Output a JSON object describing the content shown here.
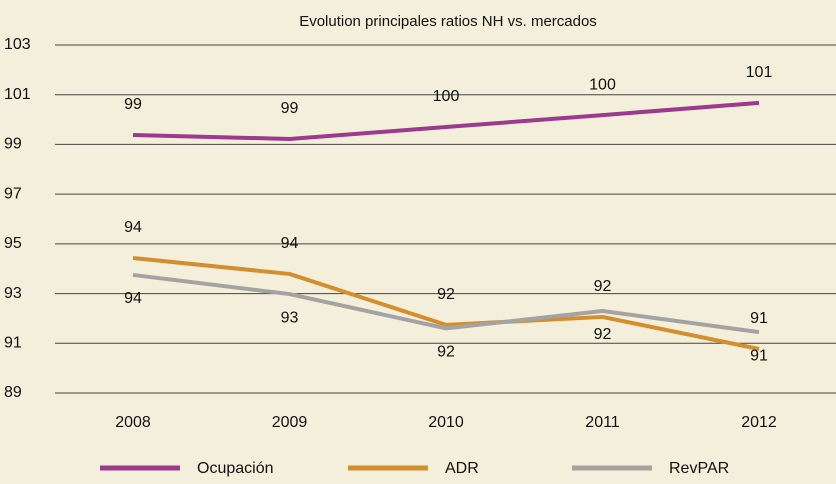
{
  "chart_data": {
    "type": "line",
    "title": "Evolution principales ratios NH vs. mercados",
    "categories": [
      "2008",
      "2009",
      "2010",
      "2011",
      "2012"
    ],
    "series": [
      {
        "name": "Ocupación",
        "color": "#9b3a8e",
        "values": [
          99.38,
          99.22,
          99.7,
          100.18,
          100.67
        ],
        "value_labels": [
          "99",
          "99",
          "100",
          "100",
          "101"
        ]
      },
      {
        "name": "ADR",
        "color": "#d38f2e",
        "values": [
          94.43,
          93.79,
          91.74,
          92.06,
          90.77
        ],
        "value_labels": [
          "94",
          "94",
          "92",
          "92",
          "91"
        ]
      },
      {
        "name": "RevPAR",
        "color": "#a3a3a3",
        "values": [
          93.75,
          92.98,
          91.6,
          92.3,
          91.45
        ],
        "value_labels": [
          "94",
          "93",
          "92",
          "92",
          "91"
        ]
      }
    ],
    "ylim": [
      89,
      103
    ],
    "yticks": [
      89,
      91,
      93,
      95,
      97,
      99,
      101,
      103
    ],
    "grid": true,
    "legend": "bottom"
  }
}
